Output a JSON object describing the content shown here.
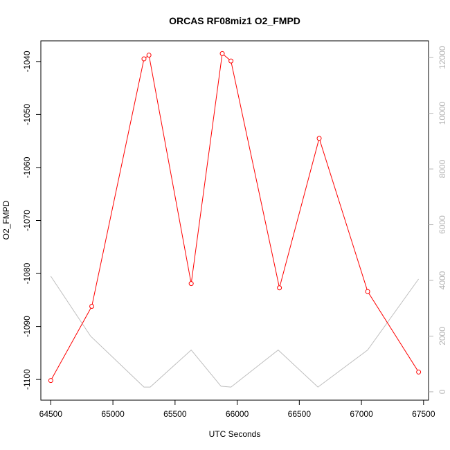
{
  "chart_data": {
    "type": "line",
    "title": "ORCAS RF08miz1 O2_FMPD",
    "xlabel": "UTC Seconds",
    "ylabel": "O2_FMPD",
    "xlim": [
      64420,
      67540
    ],
    "ylim": [
      -1103.9,
      -1036.1
    ],
    "y2lim": [
      -300,
      12600
    ],
    "x_ticks": [
      64500,
      65000,
      65500,
      66000,
      66500,
      67000,
      67500
    ],
    "y_ticks": [
      -1100,
      -1090,
      -1080,
      -1070,
      -1060,
      -1050,
      -1040
    ],
    "y2_ticks": [
      0,
      2000,
      4000,
      6000,
      8000,
      10000,
      12000
    ],
    "grid": false,
    "legend": "none",
    "colors": {
      "primary": "#ff0000",
      "secondary": "#bebebe",
      "axis": "#000000",
      "axis2": "#b5b5b5"
    },
    "series": [
      {
        "axis": "left",
        "x": [
          64500,
          64830,
          65250,
          65290,
          65630,
          65880,
          65950,
          66340,
          66660,
          67050,
          67460
        ],
        "y": [
          -1100.2,
          -1086.2,
          -1039.5,
          -1038.8,
          -1081.9,
          -1038.5,
          -1039.9,
          -1082.7,
          -1054.5,
          -1083.4,
          -1098.6
        ]
      },
      {
        "axis": "right",
        "x": [
          64500,
          64820,
          65250,
          65300,
          65630,
          65870,
          65950,
          66330,
          66650,
          67050,
          67460
        ],
        "y": [
          4150,
          2000,
          170,
          170,
          1500,
          200,
          170,
          1500,
          170,
          1500,
          4050
        ]
      }
    ]
  }
}
